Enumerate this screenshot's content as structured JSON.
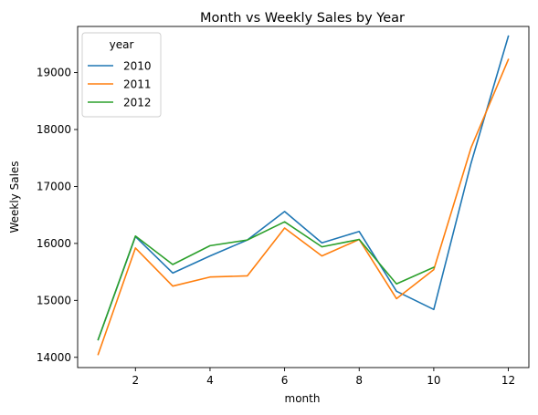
{
  "chart_data": {
    "type": "line",
    "title": "Month vs Weekly Sales by Year",
    "xlabel": "month",
    "ylabel": "Weekly Sales",
    "x": [
      1,
      2,
      3,
      4,
      5,
      6,
      7,
      8,
      9,
      10,
      11,
      12
    ],
    "xlim": [
      0.45,
      12.55
    ],
    "ylim": [
      13820,
      19810
    ],
    "xticks": [
      2,
      4,
      6,
      8,
      10,
      12
    ],
    "yticks": [
      14000,
      15000,
      16000,
      17000,
      18000,
      19000
    ],
    "grid": false,
    "legend": {
      "title": "year",
      "placement": "top-left"
    },
    "series": [
      {
        "name": "2010",
        "color": "#1f77b4",
        "x": [
          1,
          2,
          3,
          4,
          5,
          6,
          7,
          8,
          9,
          10,
          11,
          12
        ],
        "values": [
          14310,
          16120,
          15480,
          15780,
          16060,
          16560,
          16010,
          16210,
          15160,
          14840,
          17410,
          19640
        ]
      },
      {
        "name": "2011",
        "color": "#ff7f0e",
        "x": [
          1,
          2,
          3,
          4,
          5,
          6,
          7,
          8,
          9,
          10,
          11,
          12
        ],
        "values": [
          14050,
          15920,
          15250,
          15410,
          15430,
          16270,
          15780,
          16070,
          15030,
          15540,
          17680,
          19230
        ]
      },
      {
        "name": "2012",
        "color": "#2ca02c",
        "x": [
          1,
          2,
          3,
          4,
          5,
          6,
          7,
          8,
          9,
          10
        ],
        "values": [
          14310,
          16130,
          15630,
          15960,
          16060,
          16380,
          15940,
          16070,
          15290,
          15580
        ]
      }
    ]
  }
}
